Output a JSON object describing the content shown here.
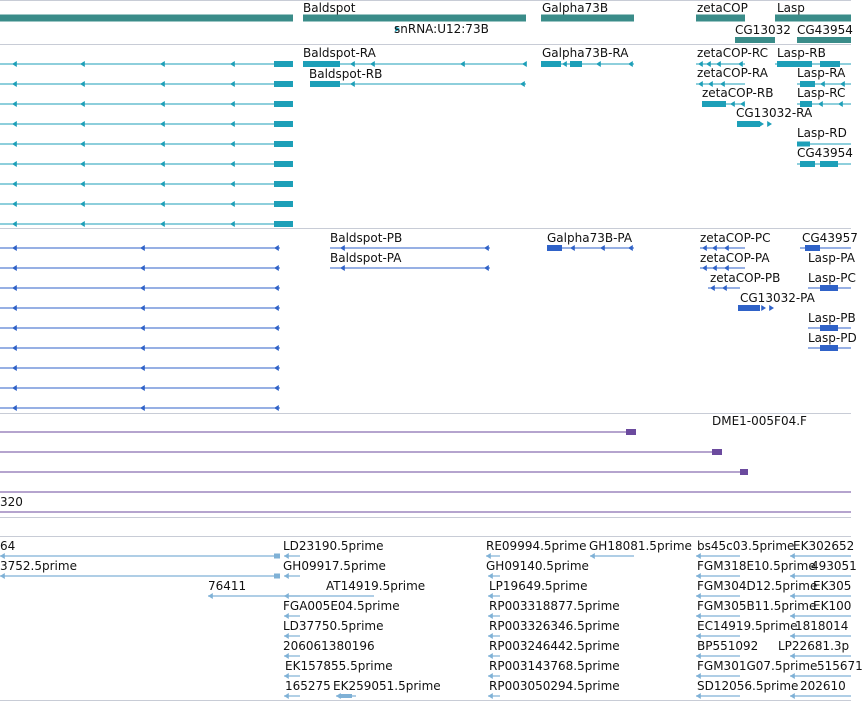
{
  "colors": {
    "gene": "#3a8c89",
    "transcript_flybase": "#1d9fb8",
    "transcript_protein": "#2f62c8",
    "est_sequence": "#6b4a9e",
    "est_reads": "#7fb1d6",
    "separator": "#c8ccd6",
    "label": "#111111"
  },
  "gene_track": {
    "labels": [
      "Baldspot",
      "snRNA:U12:73B",
      "Galpha73B",
      "zetaCOP",
      "Lasp",
      "CG13032",
      "CG43954"
    ]
  },
  "transcript_track_a": {
    "labels": [
      "Baldspot-RA",
      "Baldspot-RB",
      "Galpha73B-RA",
      "zetaCOP-RC",
      "zetaCOP-RA",
      "zetaCOP-RB",
      "CG13032-RA",
      "Lasp-RB",
      "Lasp-RA",
      "Lasp-RC",
      "Lasp-RD",
      "CG43954"
    ]
  },
  "transcript_track_b": {
    "labels": [
      "Baldspot-PB",
      "Baldspot-PA",
      "Galpha73B-PA",
      "zetaCOP-PC",
      "zetaCOP-PA",
      "zetaCOP-PB",
      "CG13032-PA",
      "CG43957",
      "Lasp-PA",
      "Lasp-PC",
      "Lasp-PB",
      "Lasp-PD"
    ]
  },
  "est_track": {
    "labels": [
      "DME1-005F04.F",
      "320"
    ]
  },
  "reads_track": {
    "labels": [
      "64",
      "3752.5prime",
      "76411",
      "LD23190.5prime",
      "GH09917.5prime",
      "AT14919.5prime",
      "FGA005E04.5prime",
      "LD37750.5prime",
      "206061380196",
      "EK157855.5prime",
      "165275",
      "EK259051.5prime",
      "RE09994.5prime",
      "GH18081.5prime",
      "GH09140.5prime",
      "LP19649.5prime",
      "RP003318877.5prime",
      "RP003326346.5prime",
      "RP003246442.5prime",
      "RP003143768.5prime",
      "RP003050294.5prime",
      "bs45c03.5prime",
      "FGM318E10.5prime",
      "FGM304D12.5prime",
      "FGM305B11.5prime",
      "EC14919.5prime",
      "BP551092",
      "FGM301G07.5prime",
      "SD12056.5prime",
      "EK302652",
      "493051",
      "EK305",
      "EK100",
      "1818014",
      "LP22681.3p",
      "515671",
      "202610"
    ]
  }
}
